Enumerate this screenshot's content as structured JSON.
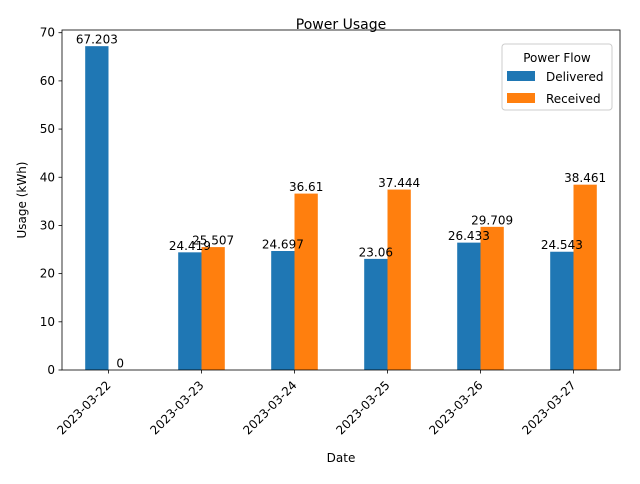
{
  "chart_data": {
    "type": "bar",
    "title": "Power Usage",
    "xlabel": "Date",
    "ylabel": "Usage (kWh)",
    "categories": [
      "2023-03-22",
      "2023-03-23",
      "2023-03-24",
      "2023-03-25",
      "2023-03-26",
      "2023-03-27"
    ],
    "series": [
      {
        "name": "Delivered",
        "color": "#1f77b4",
        "values": [
          67.203,
          24.419,
          24.697,
          23.06,
          26.433,
          24.543
        ],
        "labels": [
          "67.203",
          "24.419",
          "24.697",
          "23.06",
          "26.433",
          "24.543"
        ]
      },
      {
        "name": "Received",
        "color": "#ff7f0e",
        "values": [
          0,
          25.507,
          36.61,
          37.444,
          29.709,
          38.461
        ],
        "labels": [
          "0",
          "25.507",
          "36.61",
          "37.444",
          "29.709",
          "38.461"
        ]
      }
    ],
    "ylim": [
      0,
      70.56
    ],
    "yticks": [
      0,
      10,
      20,
      30,
      40,
      50,
      60,
      70
    ],
    "grid": false,
    "legend": {
      "title": "Power Flow",
      "placement": "top-right"
    }
  }
}
